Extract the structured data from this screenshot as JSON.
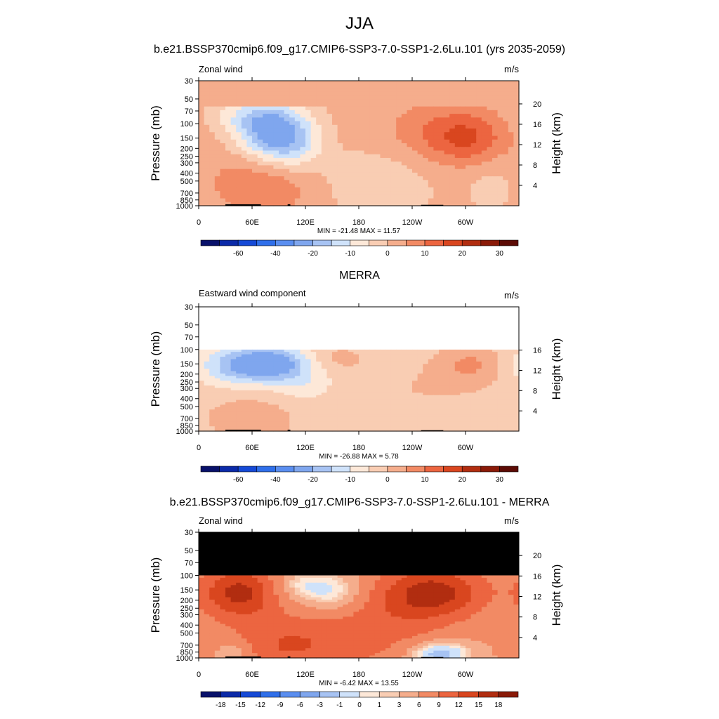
{
  "figure": {
    "season": "JJA",
    "panels": [
      {
        "title": "b.e21.BSSP370cmip6.f09_g17.CMIP6-SSP3-7.0-SSP1-2.6Lu.101 (yrs 2035-2059)",
        "left_label": "Zonal wind",
        "right_label": "m/s",
        "stats": "MIN = -21.48  MAX =  11.57",
        "height_ticks": [
          "4",
          "8",
          "12",
          "16",
          "20"
        ]
      },
      {
        "title": "MERRA",
        "left_label": "Eastward wind component",
        "right_label": "m/s",
        "stats": "MIN = -26.88  MAX =   5.78",
        "height_ticks": [
          "4",
          "8",
          "12",
          "16"
        ]
      },
      {
        "title": "b.e21.BSSP370cmip6.f09_g17.CMIP6-SSP3-7.0-SSP1-2.6Lu.101 - MERRA",
        "left_label": "Zonal wind",
        "right_label": "m/s",
        "stats": "MIN =  -6.42  MAX =  13.55",
        "height_ticks": [
          "4",
          "8",
          "12",
          "16",
          "20"
        ]
      }
    ]
  },
  "chart_data": [
    {
      "type": "heatmap",
      "title": "b.e21.BSSP370cmip6.f09_g17.CMIP6-SSP3-7.0-SSP1-2.6Lu.101 (yrs 2035-2059)",
      "subtitle": "Zonal wind",
      "units": "m/s",
      "xlabel": "",
      "ylabel": "Pressure (mb)",
      "y2label": "Height (km)",
      "x_ticks": [
        "0",
        "60E",
        "120E",
        "180",
        "120W",
        "60W"
      ],
      "y_ticks": [
        "30",
        "50",
        "70",
        "100",
        "150",
        "200",
        "250",
        "300",
        "400",
        "500",
        "700",
        "850",
        "1000"
      ],
      "y_scale": "log",
      "xlim": [
        0,
        360
      ],
      "ylim": [
        1000,
        30
      ],
      "min": -21.48,
      "max": 11.57,
      "colorbar_labels": [
        "-60",
        "-40",
        "-20",
        "-10",
        "0",
        "10",
        "20",
        "30"
      ],
      "features": [
        {
          "type": "min",
          "lon": 85,
          "p": 140,
          "value": -21.5
        },
        {
          "type": "max",
          "lon": 305,
          "p": 150,
          "value": 11.6
        }
      ]
    },
    {
      "type": "heatmap",
      "title": "MERRA",
      "subtitle": "Eastward wind component",
      "units": "m/s",
      "xlabel": "",
      "ylabel": "Pressure (mb)",
      "y2label": "Height (km)",
      "x_ticks": [
        "0",
        "60E",
        "120E",
        "180",
        "120W",
        "60W"
      ],
      "y_ticks": [
        "30",
        "50",
        "70",
        "100",
        "150",
        "200",
        "250",
        "300",
        "400",
        "500",
        "700",
        "850",
        "1000"
      ],
      "y_scale": "log",
      "xlim": [
        0,
        360
      ],
      "ylim": [
        1000,
        30
      ],
      "data_top_p": 100,
      "min": -26.88,
      "max": 5.78,
      "colorbar_labels": [
        "-60",
        "-40",
        "-20",
        "-10",
        "0",
        "10",
        "20",
        "30"
      ],
      "features": [
        {
          "type": "min",
          "lon": 75,
          "p": 150,
          "value": -26.9
        },
        {
          "type": "max",
          "lon": 305,
          "p": 150,
          "value": 5.8
        }
      ]
    },
    {
      "type": "heatmap",
      "title": "b.e21.BSSP370cmip6.f09_g17.CMIP6-SSP3-7.0-SSP1-2.6Lu.101 - MERRA",
      "subtitle": "Zonal wind",
      "units": "m/s",
      "xlabel": "",
      "ylabel": "Pressure (mb)",
      "y2label": "Height (km)",
      "x_ticks": [
        "0",
        "60E",
        "120E",
        "180",
        "120W",
        "60W"
      ],
      "y_ticks": [
        "30",
        "50",
        "70",
        "100",
        "150",
        "200",
        "250",
        "300",
        "400",
        "500",
        "700",
        "850",
        "1000"
      ],
      "y_scale": "log",
      "xlim": [
        0,
        360
      ],
      "ylim": [
        1000,
        30
      ],
      "data_top_p": 100,
      "min": -6.42,
      "max": 13.55,
      "colorbar_labels": [
        "-18",
        "-15",
        "-12",
        "-9",
        "-6",
        "-3",
        "-1",
        "0",
        "1",
        "3",
        "6",
        "9",
        "12",
        "15",
        "18"
      ],
      "features": [
        {
          "type": "max",
          "lon": 45,
          "p": 160,
          "value": 13.6
        },
        {
          "type": "max",
          "lon": 265,
          "p": 160,
          "value": 12
        },
        {
          "type": "min",
          "lon": 145,
          "p": 160,
          "value": -3
        },
        {
          "type": "min",
          "lon": 270,
          "p": 900,
          "value": -6.4
        }
      ]
    }
  ],
  "colorbars": {
    "full_colors": [
      "#08116a",
      "#0b2aa8",
      "#1549d6",
      "#2f6fea",
      "#5a8ef0",
      "#7fa6ee",
      "#a7c3f3",
      "#cfe2fa",
      "#fde8d8",
      "#f9cdb3",
      "#f5ad8c",
      "#f28a64",
      "#ec6540",
      "#d9461f",
      "#b12d10",
      "#8a1a08",
      "#5c0b05"
    ],
    "diff_colors": [
      "#08116a",
      "#0b2aa8",
      "#1549d6",
      "#2f6fea",
      "#5a8ef0",
      "#7fa6ee",
      "#a7c3f3",
      "#cfe2fa",
      "#fde8d8",
      "#f9cdb3",
      "#f5ad8c",
      "#f28a64",
      "#ec6540",
      "#d9461f",
      "#b12d10",
      "#8a1a08"
    ]
  }
}
